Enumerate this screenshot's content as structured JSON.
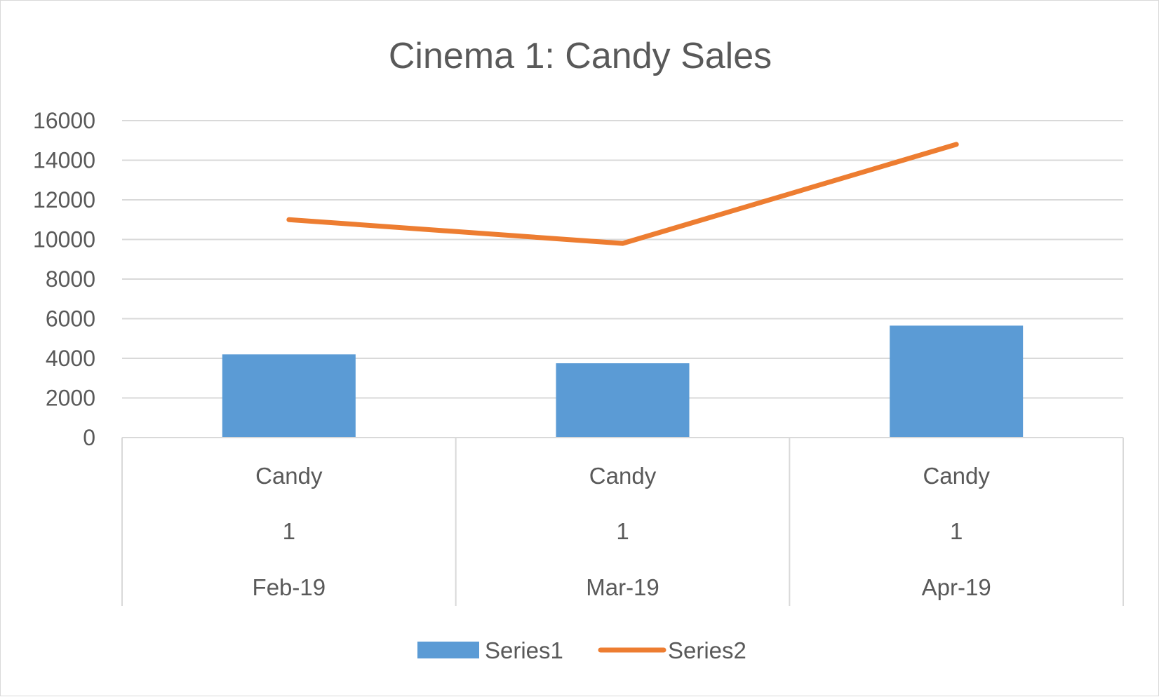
{
  "chart_data": {
    "type": "bar",
    "title": "Cinema 1: Candy Sales",
    "xlabel": "",
    "ylabel": "",
    "ylim": [
      0,
      16000
    ],
    "yticks": [
      0,
      2000,
      4000,
      6000,
      8000,
      10000,
      12000,
      14000,
      16000
    ],
    "grid": true,
    "legend_position": "bottom",
    "categories": [
      {
        "product": "Candy",
        "cinema": "1",
        "month": "Feb-19"
      },
      {
        "product": "Candy",
        "cinema": "1",
        "month": "Mar-19"
      },
      {
        "product": "Candy",
        "cinema": "1",
        "month": "Apr-19"
      }
    ],
    "series": [
      {
        "name": "Series1",
        "type": "bar",
        "color": "#5b9bd5",
        "values": [
          4200,
          3750,
          5650
        ]
      },
      {
        "name": "Series2",
        "type": "line",
        "color": "#ed7d31",
        "values": [
          11000,
          9800,
          14800
        ]
      }
    ]
  }
}
